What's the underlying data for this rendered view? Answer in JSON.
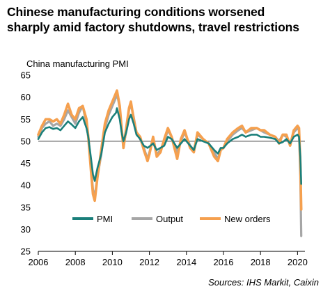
{
  "title_lines": [
    "Chinese manufacturing conditions worsened",
    "sharply amid factory shutdowns, travel restrictions"
  ],
  "source": "Sources: IHS Markit, Caixin",
  "chart_data": {
    "type": "line",
    "ylabel": "China manufacturing PMI",
    "xlabel": "",
    "ylim": [
      25,
      65
    ],
    "xlim": [
      2006,
      2020.4
    ],
    "yticks": [
      25,
      30,
      35,
      40,
      45,
      50,
      55,
      60,
      65
    ],
    "xticks": [
      "2006",
      "2008",
      "2010",
      "2012",
      "2014",
      "2016",
      "2018",
      "2020"
    ],
    "reference_line": 50,
    "grid": false,
    "legend_position": "bottom-center-inside",
    "series": [
      {
        "name": "PMI",
        "color": "#1a7f7a",
        "points": [
          [
            2006.0,
            50.5
          ],
          [
            2006.2,
            52.0
          ],
          [
            2006.4,
            53.0
          ],
          [
            2006.6,
            53.2
          ],
          [
            2006.8,
            52.8
          ],
          [
            2007.0,
            53.0
          ],
          [
            2007.2,
            52.5
          ],
          [
            2007.4,
            53.5
          ],
          [
            2007.6,
            54.5
          ],
          [
            2007.8,
            53.8
          ],
          [
            2008.0,
            53.0
          ],
          [
            2008.2,
            54.5
          ],
          [
            2008.4,
            55.5
          ],
          [
            2008.6,
            53.0
          ],
          [
            2008.7,
            51.0
          ],
          [
            2008.85,
            46.0
          ],
          [
            2008.95,
            42.5
          ],
          [
            2009.05,
            41.0
          ],
          [
            2009.2,
            44.0
          ],
          [
            2009.4,
            47.0
          ],
          [
            2009.6,
            52.0
          ],
          [
            2009.8,
            54.0
          ],
          [
            2010.0,
            55.5
          ],
          [
            2010.2,
            56.5
          ],
          [
            2010.25,
            57.5
          ],
          [
            2010.4,
            55.0
          ],
          [
            2010.5,
            52.0
          ],
          [
            2010.6,
            50.0
          ],
          [
            2010.75,
            52.0
          ],
          [
            2010.9,
            55.0
          ],
          [
            2011.0,
            56.0
          ],
          [
            2011.15,
            54.0
          ],
          [
            2011.3,
            51.5
          ],
          [
            2011.5,
            50.5
          ],
          [
            2011.7,
            49.0
          ],
          [
            2011.9,
            48.5
          ],
          [
            2012.0,
            48.8
          ],
          [
            2012.2,
            49.5
          ],
          [
            2012.4,
            48.0
          ],
          [
            2012.6,
            48.5
          ],
          [
            2012.8,
            49.0
          ],
          [
            2013.0,
            51.0
          ],
          [
            2013.2,
            50.5
          ],
          [
            2013.5,
            48.5
          ],
          [
            2013.7,
            49.5
          ],
          [
            2013.9,
            50.5
          ],
          [
            2014.2,
            49.0
          ],
          [
            2014.4,
            48.0
          ],
          [
            2014.6,
            50.5
          ],
          [
            2014.9,
            50.0
          ],
          [
            2015.2,
            49.5
          ],
          [
            2015.5,
            48.0
          ],
          [
            2015.7,
            47.2
          ],
          [
            2015.85,
            48.5
          ],
          [
            2016.0,
            48.5
          ],
          [
            2016.2,
            49.5
          ],
          [
            2016.5,
            50.5
          ],
          [
            2016.8,
            51.0
          ],
          [
            2017.0,
            51.5
          ],
          [
            2017.2,
            51.0
          ],
          [
            2017.5,
            51.5
          ],
          [
            2017.8,
            51.5
          ],
          [
            2018.0,
            51.0
          ],
          [
            2018.2,
            51.0
          ],
          [
            2018.5,
            50.8
          ],
          [
            2018.8,
            50.5
          ],
          [
            2019.0,
            49.5
          ],
          [
            2019.2,
            49.8
          ],
          [
            2019.4,
            50.5
          ],
          [
            2019.6,
            49.5
          ],
          [
            2019.8,
            51.0
          ],
          [
            2020.0,
            51.5
          ],
          [
            2020.08,
            51.0
          ],
          [
            2020.15,
            46.5
          ],
          [
            2020.2,
            40.3
          ]
        ]
      },
      {
        "name": "Output",
        "color": "#a6a6a6",
        "points": [
          [
            2006.0,
            51.0
          ],
          [
            2006.2,
            53.0
          ],
          [
            2006.4,
            54.0
          ],
          [
            2006.6,
            54.5
          ],
          [
            2006.8,
            53.5
          ],
          [
            2007.0,
            54.0
          ],
          [
            2007.2,
            53.5
          ],
          [
            2007.4,
            55.0
          ],
          [
            2007.6,
            57.0
          ],
          [
            2007.8,
            55.5
          ],
          [
            2008.0,
            54.0
          ],
          [
            2008.2,
            56.5
          ],
          [
            2008.4,
            58.0
          ],
          [
            2008.6,
            54.0
          ],
          [
            2008.7,
            51.0
          ],
          [
            2008.85,
            44.0
          ],
          [
            2008.95,
            39.0
          ],
          [
            2009.05,
            37.5
          ],
          [
            2009.2,
            42.0
          ],
          [
            2009.4,
            47.0
          ],
          [
            2009.6,
            53.0
          ],
          [
            2009.8,
            56.0
          ],
          [
            2010.0,
            58.0
          ],
          [
            2010.2,
            60.0
          ],
          [
            2010.25,
            61.0
          ],
          [
            2010.4,
            57.5
          ],
          [
            2010.5,
            52.5
          ],
          [
            2010.6,
            48.5
          ],
          [
            2010.75,
            52.5
          ],
          [
            2010.9,
            57.0
          ],
          [
            2011.0,
            58.5
          ],
          [
            2011.15,
            55.5
          ],
          [
            2011.3,
            52.0
          ],
          [
            2011.5,
            50.5
          ],
          [
            2011.7,
            48.5
          ],
          [
            2011.9,
            46.0
          ],
          [
            2012.0,
            47.5
          ],
          [
            2012.2,
            50.5
          ],
          [
            2012.4,
            47.0
          ],
          [
            2012.6,
            48.0
          ],
          [
            2012.8,
            50.0
          ],
          [
            2013.0,
            52.5
          ],
          [
            2013.2,
            51.0
          ],
          [
            2013.5,
            47.5
          ],
          [
            2013.7,
            50.0
          ],
          [
            2013.9,
            52.0
          ],
          [
            2014.2,
            49.0
          ],
          [
            2014.4,
            48.0
          ],
          [
            2014.6,
            51.5
          ],
          [
            2014.9,
            50.5
          ],
          [
            2015.2,
            49.5
          ],
          [
            2015.5,
            47.5
          ],
          [
            2015.7,
            46.0
          ],
          [
            2015.85,
            48.0
          ],
          [
            2016.0,
            48.5
          ],
          [
            2016.2,
            50.0
          ],
          [
            2016.5,
            51.5
          ],
          [
            2016.8,
            52.5
          ],
          [
            2017.0,
            53.0
          ],
          [
            2017.2,
            52.0
          ],
          [
            2017.5,
            52.5
          ],
          [
            2017.8,
            53.0
          ],
          [
            2018.0,
            52.5
          ],
          [
            2018.2,
            52.0
          ],
          [
            2018.5,
            51.5
          ],
          [
            2018.8,
            51.0
          ],
          [
            2019.0,
            50.0
          ],
          [
            2019.2,
            51.5
          ],
          [
            2019.4,
            51.0
          ],
          [
            2019.6,
            49.5
          ],
          [
            2019.8,
            52.0
          ],
          [
            2020.0,
            53.0
          ],
          [
            2020.08,
            52.5
          ],
          [
            2020.15,
            42.0
          ],
          [
            2020.2,
            28.5
          ]
        ]
      },
      {
        "name": "New orders",
        "color": "#f5a04f",
        "points": [
          [
            2006.0,
            51.5
          ],
          [
            2006.2,
            53.5
          ],
          [
            2006.4,
            55.0
          ],
          [
            2006.6,
            55.0
          ],
          [
            2006.8,
            54.5
          ],
          [
            2007.0,
            55.0
          ],
          [
            2007.2,
            54.0
          ],
          [
            2007.4,
            56.0
          ],
          [
            2007.6,
            58.5
          ],
          [
            2007.8,
            56.0
          ],
          [
            2008.0,
            55.0
          ],
          [
            2008.2,
            57.5
          ],
          [
            2008.4,
            58.0
          ],
          [
            2008.6,
            55.0
          ],
          [
            2008.7,
            51.0
          ],
          [
            2008.85,
            43.0
          ],
          [
            2008.95,
            38.0
          ],
          [
            2009.05,
            36.5
          ],
          [
            2009.2,
            42.0
          ],
          [
            2009.4,
            48.0
          ],
          [
            2009.6,
            54.0
          ],
          [
            2009.8,
            57.0
          ],
          [
            2010.0,
            59.0
          ],
          [
            2010.2,
            61.0
          ],
          [
            2010.25,
            61.5
          ],
          [
            2010.4,
            58.0
          ],
          [
            2010.5,
            53.0
          ],
          [
            2010.6,
            48.5
          ],
          [
            2010.75,
            53.0
          ],
          [
            2010.9,
            57.5
          ],
          [
            2011.0,
            59.0
          ],
          [
            2011.15,
            55.0
          ],
          [
            2011.3,
            52.0
          ],
          [
            2011.5,
            51.0
          ],
          [
            2011.7,
            48.0
          ],
          [
            2011.9,
            45.5
          ],
          [
            2012.0,
            47.0
          ],
          [
            2012.2,
            51.0
          ],
          [
            2012.4,
            46.5
          ],
          [
            2012.6,
            47.5
          ],
          [
            2012.8,
            50.5
          ],
          [
            2013.0,
            53.0
          ],
          [
            2013.2,
            51.0
          ],
          [
            2013.5,
            46.0
          ],
          [
            2013.7,
            50.5
          ],
          [
            2013.9,
            52.5
          ],
          [
            2014.2,
            48.5
          ],
          [
            2014.4,
            47.5
          ],
          [
            2014.6,
            52.0
          ],
          [
            2014.9,
            50.5
          ],
          [
            2015.2,
            49.5
          ],
          [
            2015.5,
            46.5
          ],
          [
            2015.7,
            45.5
          ],
          [
            2015.85,
            48.0
          ],
          [
            2016.0,
            48.5
          ],
          [
            2016.2,
            50.5
          ],
          [
            2016.5,
            52.0
          ],
          [
            2016.8,
            53.0
          ],
          [
            2017.0,
            53.5
          ],
          [
            2017.2,
            52.0
          ],
          [
            2017.5,
            53.0
          ],
          [
            2017.8,
            53.0
          ],
          [
            2018.0,
            52.5
          ],
          [
            2018.2,
            52.5
          ],
          [
            2018.5,
            51.5
          ],
          [
            2018.8,
            51.0
          ],
          [
            2019.0,
            49.5
          ],
          [
            2019.2,
            51.5
          ],
          [
            2019.4,
            51.5
          ],
          [
            2019.6,
            49.0
          ],
          [
            2019.8,
            52.5
          ],
          [
            2020.0,
            53.5
          ],
          [
            2020.08,
            53.0
          ],
          [
            2020.15,
            45.0
          ],
          [
            2020.2,
            34.5
          ]
        ]
      }
    ]
  }
}
